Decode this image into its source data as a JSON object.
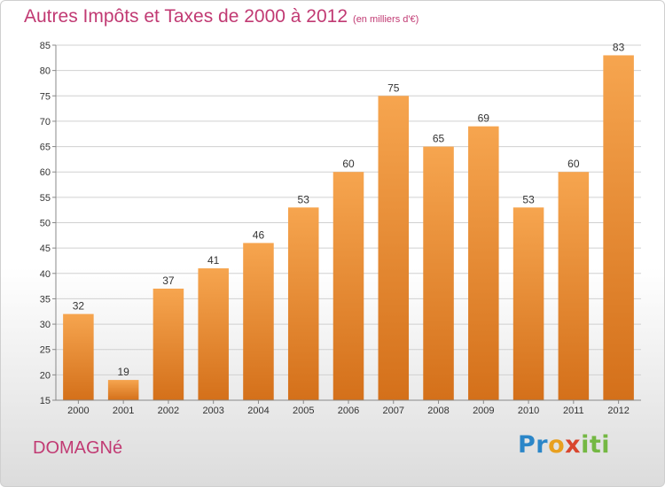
{
  "chart_data": {
    "type": "bar",
    "title": "Autres Impôts et Taxes de 2000 à 2012",
    "subtitle": "(en milliers d'€)",
    "categories": [
      "2000",
      "2001",
      "2002",
      "2003",
      "2004",
      "2005",
      "2006",
      "2007",
      "2008",
      "2009",
      "2010",
      "2011",
      "2012"
    ],
    "values": [
      32,
      19,
      37,
      41,
      46,
      53,
      60,
      75,
      65,
      69,
      53,
      60,
      83
    ],
    "ylim": [
      15,
      85
    ],
    "yticks": [
      15,
      20,
      25,
      30,
      35,
      40,
      45,
      50,
      55,
      60,
      65,
      70,
      75,
      80,
      85
    ],
    "grid": true,
    "colors": {
      "bar_top": "#f6a54f",
      "bar_bottom": "#d4701a",
      "title": "#c13a73"
    }
  },
  "footer": {
    "place": "DOMAGNé",
    "logo_parts": [
      "Pr",
      "o",
      "x",
      "iti"
    ]
  }
}
